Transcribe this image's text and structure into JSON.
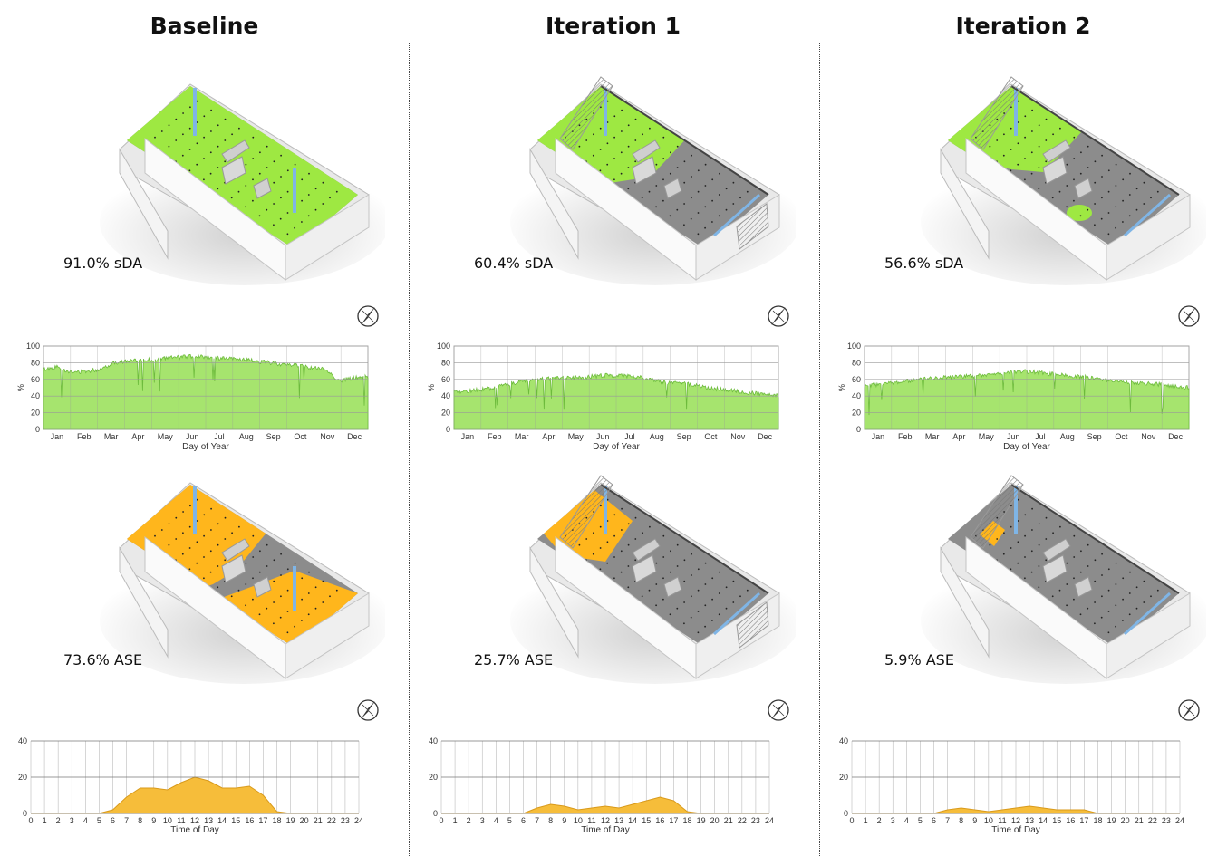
{
  "panels": [
    {
      "title": "Baseline",
      "sda_label": "91.0% sDA",
      "ase_label": "73.6% ASE",
      "variant": 0,
      "annual": {
        "ylim": [
          0,
          100
        ],
        "yticks": [
          "0",
          "20",
          "40",
          "60",
          "80",
          "100"
        ],
        "ylabel": "%",
        "xticks": [
          "Jan",
          "Feb",
          "Mar",
          "Apr",
          "May",
          "Jun",
          "Jul",
          "Aug",
          "Sep",
          "Oct",
          "Nov",
          "Dec"
        ],
        "xlabel": "Day of Year",
        "profile": [
          72,
          75,
          68,
          70,
          72,
          80,
          82,
          83,
          84,
          86,
          87,
          88,
          86,
          85,
          84,
          82,
          80,
          78,
          77,
          74,
          72,
          58,
          62,
          63
        ]
      },
      "hourly": {
        "ylim": [
          0,
          40
        ],
        "yticks": [
          "0",
          "20",
          "40"
        ],
        "xticks": [
          "0",
          "1",
          "2",
          "3",
          "4",
          "5",
          "6",
          "7",
          "8",
          "9",
          "10",
          "11",
          "12",
          "13",
          "14",
          "15",
          "16",
          "17",
          "18",
          "19",
          "20",
          "21",
          "22",
          "23",
          "24"
        ],
        "xlabel": "Time of Day",
        "values": [
          0,
          0,
          0,
          0,
          0,
          0,
          2,
          9,
          14,
          14,
          13,
          17,
          20,
          18,
          14,
          14,
          15,
          10,
          1,
          0,
          0,
          0,
          0,
          0,
          0
        ]
      }
    },
    {
      "title": "Iteration 1",
      "sda_label": "60.4% sDA",
      "ase_label": "25.7% ASE",
      "variant": 1,
      "annual": {
        "ylim": [
          0,
          100
        ],
        "yticks": [
          "0",
          "20",
          "40",
          "60",
          "80",
          "100"
        ],
        "ylabel": "%",
        "xticks": [
          "Jan",
          "Feb",
          "Mar",
          "Apr",
          "May",
          "Jun",
          "Jul",
          "Aug",
          "Sep",
          "Oct",
          "Nov",
          "Dec"
        ],
        "xlabel": "Day of Year",
        "profile": [
          44,
          46,
          48,
          50,
          55,
          58,
          60,
          61,
          62,
          62,
          64,
          65,
          64,
          63,
          60,
          56,
          55,
          54,
          50,
          48,
          46,
          44,
          42,
          40
        ]
      },
      "hourly": {
        "ylim": [
          0,
          40
        ],
        "yticks": [
          "0",
          "20",
          "40"
        ],
        "xticks": [
          "0",
          "1",
          "2",
          "3",
          "4",
          "5",
          "6",
          "7",
          "8",
          "9",
          "10",
          "11",
          "12",
          "13",
          "14",
          "15",
          "16",
          "17",
          "18",
          "19",
          "20",
          "21",
          "22",
          "23",
          "24"
        ],
        "xlabel": "Time of Day",
        "values": [
          0,
          0,
          0,
          0,
          0,
          0,
          0,
          3,
          5,
          4,
          2,
          3,
          4,
          3,
          5,
          7,
          9,
          7,
          1,
          0,
          0,
          0,
          0,
          0,
          0
        ]
      }
    },
    {
      "title": "Iteration 2",
      "sda_label": "56.6% sDA",
      "ase_label": "5.9% ASE",
      "variant": 2,
      "annual": {
        "ylim": [
          0,
          100
        ],
        "yticks": [
          "0",
          "20",
          "40",
          "60",
          "80",
          "100"
        ],
        "ylabel": "%",
        "xticks": [
          "Jan",
          "Feb",
          "Mar",
          "Apr",
          "May",
          "Jun",
          "Jul",
          "Aug",
          "Sep",
          "Oct",
          "Nov",
          "Dec"
        ],
        "xlabel": "Day of Year",
        "profile": [
          52,
          54,
          56,
          58,
          60,
          62,
          63,
          64,
          64,
          66,
          68,
          70,
          69,
          67,
          65,
          64,
          62,
          60,
          58,
          56,
          55,
          54,
          52,
          50
        ]
      },
      "hourly": {
        "ylim": [
          0,
          40
        ],
        "yticks": [
          "0",
          "20",
          "40"
        ],
        "xticks": [
          "0",
          "1",
          "2",
          "3",
          "4",
          "5",
          "6",
          "7",
          "8",
          "9",
          "10",
          "11",
          "12",
          "13",
          "14",
          "15",
          "16",
          "17",
          "18",
          "19",
          "20",
          "21",
          "22",
          "23",
          "24"
        ],
        "xlabel": "Time of Day",
        "values": [
          0,
          0,
          0,
          0,
          0,
          0,
          0,
          2,
          3,
          2,
          1,
          2,
          3,
          4,
          3,
          2,
          2,
          2,
          0,
          0,
          0,
          0,
          0,
          0,
          0
        ]
      }
    }
  ],
  "colors": {
    "sda_fill": "#a6e46e",
    "sda_line": "#6dbb3c",
    "ase_fill": "#f6bd3a",
    "ase_line": "#d99a1b",
    "grid": "#999999",
    "floor": "#8c8c8c",
    "green": "#9ee842",
    "orange": "#ffb61c"
  },
  "icons": {
    "compass": "compass-icon"
  }
}
